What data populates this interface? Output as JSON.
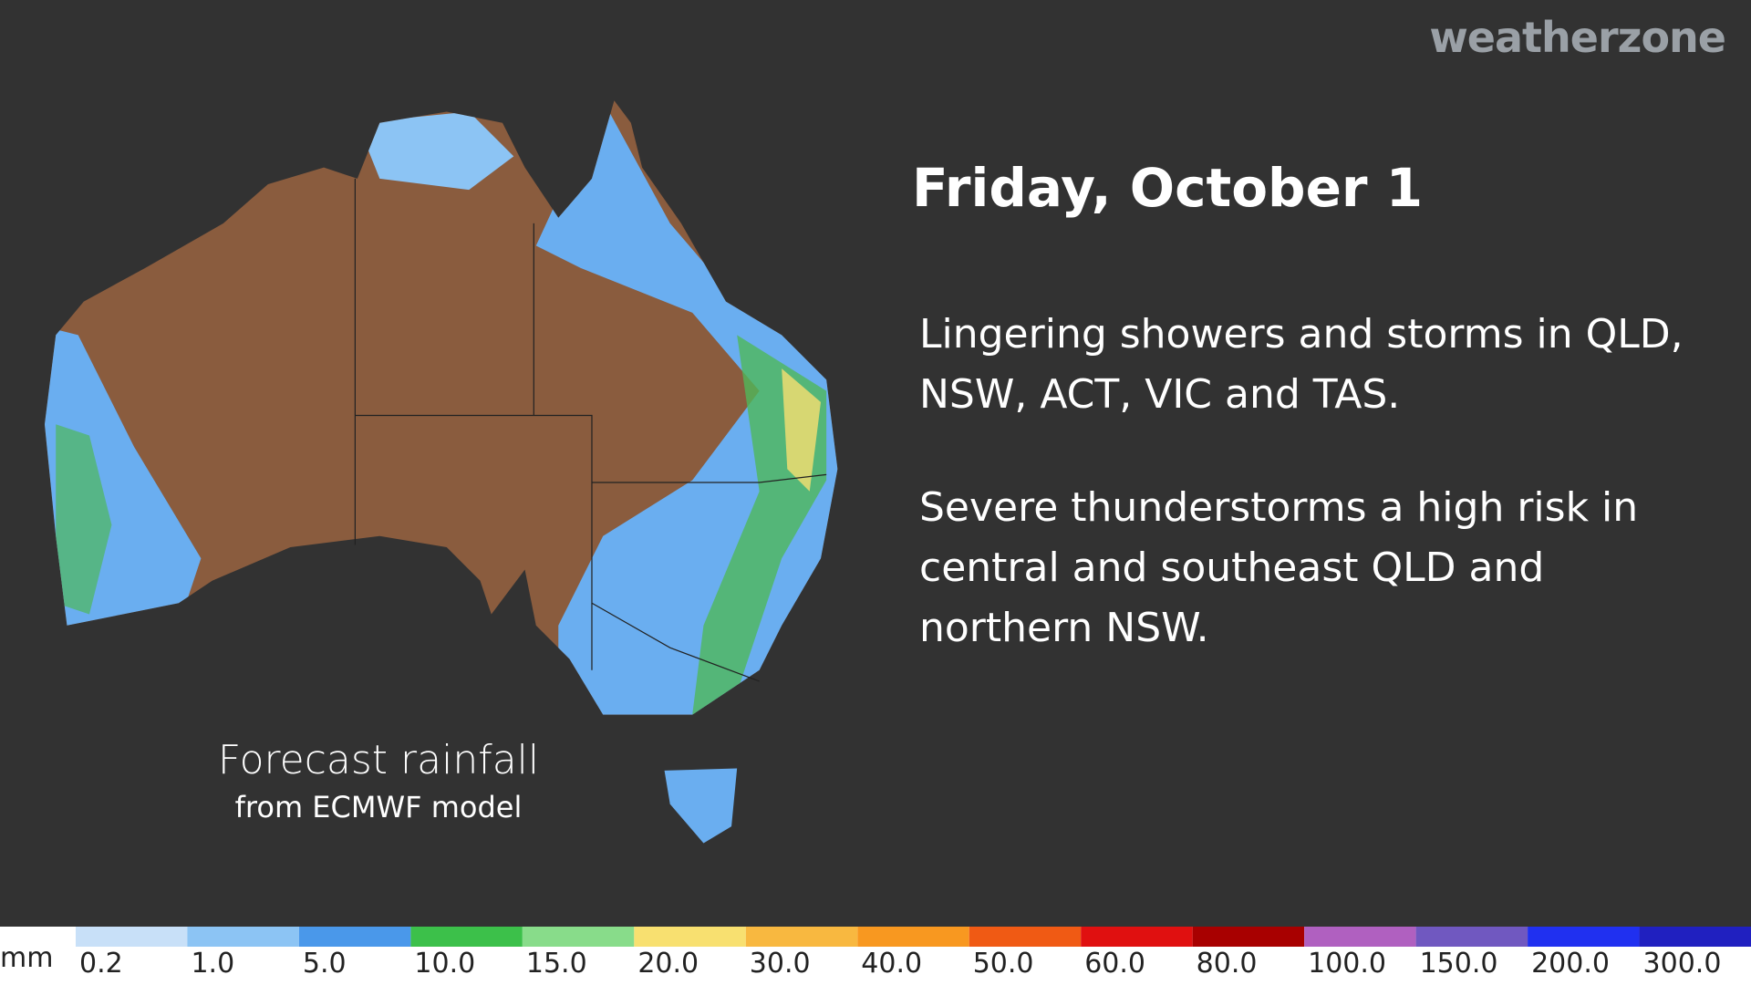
{
  "brand": "weatherzone",
  "header": {
    "title": "Friday, October 1"
  },
  "paragraphs": [
    "Lingering showers and storms in QLD, NSW, ACT, VIC and TAS.",
    "Severe thunderstorms a high risk in central and southeast QLD and northern NSW."
  ],
  "caption": {
    "title": "Forecast rainfall",
    "subtitle": "from ECMWF model"
  },
  "legend": {
    "unit": "mm",
    "items": [
      {
        "label": "0.2",
        "color": "#c8e0f8"
      },
      {
        "label": "1.0",
        "color": "#8cc4f4"
      },
      {
        "label": "5.0",
        "color": "#4a98ea"
      },
      {
        "label": "10.0",
        "color": "#3cc04a"
      },
      {
        "label": "15.0",
        "color": "#88dc8a"
      },
      {
        "label": "20.0",
        "color": "#f8e070"
      },
      {
        "label": "30.0",
        "color": "#f8b840"
      },
      {
        "label": "40.0",
        "color": "#f89820"
      },
      {
        "label": "50.0",
        "color": "#f05a14"
      },
      {
        "label": "60.0",
        "color": "#e01010"
      },
      {
        "label": "80.0",
        "color": "#a80000"
      },
      {
        "label": "100.0",
        "color": "#b060c0"
      },
      {
        "label": "150.0",
        "color": "#7058c0"
      },
      {
        "label": "200.0",
        "color": "#2030f0"
      },
      {
        "label": "300.0",
        "color": "#2020c0"
      }
    ]
  }
}
